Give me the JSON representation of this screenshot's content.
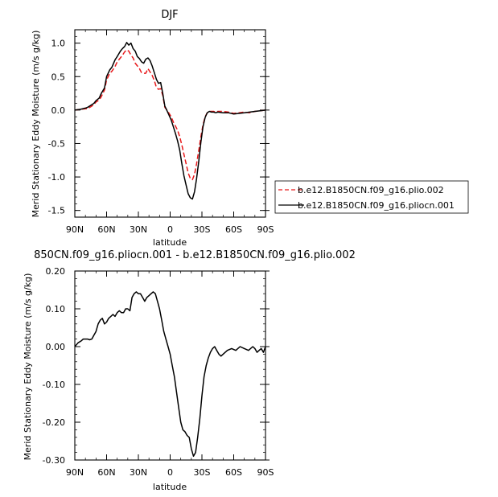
{
  "chart_data": [
    {
      "type": "line",
      "title": "DJF",
      "xlabel": "latitude",
      "ylabel": "Merid Stationary Eddy Moisture (m/s g/kg)",
      "xlim": [
        90,
        -90
      ],
      "ylim": [
        -1.6,
        1.2
      ],
      "xticks": [
        90,
        60,
        30,
        0,
        -30,
        -60,
        -90
      ],
      "xtick_labels": [
        "90N",
        "60N",
        "30N",
        "0",
        "30S",
        "60S",
        "90S"
      ],
      "yticks": [
        1.0,
        0.5,
        0.0,
        -0.5,
        -1.0,
        -1.5
      ],
      "ytick_labels": [
        "1.0",
        "0.5",
        "0.0",
        "-0.5",
        "-1.0",
        "-1.5"
      ],
      "legend_position": "right",
      "series": [
        {
          "name": "b.e12.B1850CN.f09_g16.plio.002",
          "color": "#e8191b",
          "style": "dashed",
          "x": [
            90,
            85,
            80,
            78,
            75,
            72,
            70,
            67,
            65,
            62,
            60,
            57,
            55,
            52,
            50,
            47,
            45,
            43,
            41,
            39,
            37,
            35,
            33,
            31,
            29,
            27,
            25,
            23,
            21,
            19,
            17,
            15,
            13,
            11,
            9,
            7,
            5,
            3,
            1,
            -1,
            -3,
            -5,
            -7,
            -9,
            -11,
            -13,
            -15,
            -17,
            -19,
            -21,
            -23,
            -25,
            -27,
            -29,
            -31,
            -33,
            -35,
            -37,
            -39,
            -41,
            -43,
            -45,
            -50,
            -55,
            -60,
            -65,
            -70,
            -75,
            -80,
            -85,
            -90
          ],
          "y": [
            0.0,
            0.01,
            0.02,
            0.02,
            0.05,
            0.08,
            0.12,
            0.15,
            0.2,
            0.3,
            0.45,
            0.55,
            0.58,
            0.65,
            0.72,
            0.78,
            0.82,
            0.87,
            0.9,
            0.88,
            0.82,
            0.78,
            0.7,
            0.66,
            0.62,
            0.56,
            0.55,
            0.55,
            0.62,
            0.57,
            0.52,
            0.44,
            0.34,
            0.31,
            0.32,
            0.22,
            0.04,
            0.0,
            -0.05,
            -0.1,
            -0.18,
            -0.24,
            -0.3,
            -0.4,
            -0.52,
            -0.66,
            -0.8,
            -0.94,
            -1.02,
            -1.04,
            -0.96,
            -0.8,
            -0.6,
            -0.4,
            -0.22,
            -0.1,
            -0.04,
            -0.02,
            -0.02,
            -0.02,
            -0.03,
            -0.02,
            -0.02,
            -0.03,
            -0.05,
            -0.04,
            -0.03,
            -0.04,
            -0.02,
            -0.01,
            0.0
          ]
        },
        {
          "name": "b.e12.B1850CN.f09_g16.pliocn.001",
          "color": "#000000",
          "style": "solid",
          "x": [
            90,
            85,
            80,
            78,
            75,
            72,
            70,
            67,
            65,
            62,
            60,
            57,
            55,
            52,
            50,
            47,
            45,
            43,
            41,
            39,
            37,
            35,
            33,
            31,
            29,
            27,
            25,
            23,
            21,
            19,
            17,
            15,
            13,
            11,
            9,
            7,
            5,
            3,
            1,
            -1,
            -3,
            -5,
            -7,
            -9,
            -11,
            -13,
            -15,
            -17,
            -19,
            -21,
            -23,
            -25,
            -27,
            -29,
            -31,
            -33,
            -35,
            -37,
            -39,
            -41,
            -43,
            -45,
            -50,
            -55,
            -60,
            -65,
            -70,
            -75,
            -80,
            -85,
            -90
          ],
          "y": [
            0.0,
            0.01,
            0.03,
            0.04,
            0.07,
            0.1,
            0.14,
            0.18,
            0.25,
            0.33,
            0.5,
            0.6,
            0.64,
            0.75,
            0.8,
            0.88,
            0.92,
            0.95,
            1.01,
            0.97,
            1.0,
            0.92,
            0.88,
            0.8,
            0.77,
            0.72,
            0.7,
            0.76,
            0.78,
            0.74,
            0.66,
            0.56,
            0.46,
            0.4,
            0.41,
            0.25,
            0.06,
            -0.01,
            -0.08,
            -0.15,
            -0.25,
            -0.35,
            -0.46,
            -0.6,
            -0.8,
            -0.98,
            -1.12,
            -1.25,
            -1.31,
            -1.33,
            -1.22,
            -1.02,
            -0.76,
            -0.48,
            -0.25,
            -0.11,
            -0.04,
            -0.02,
            -0.03,
            -0.03,
            -0.04,
            -0.03,
            -0.04,
            -0.04,
            -0.06,
            -0.05,
            -0.04,
            -0.03,
            -0.02,
            -0.01,
            0.0
          ]
        }
      ]
    },
    {
      "type": "line",
      "title": "850CN.f09_g16.pliocn.001 - b.e12.B1850CN.f09_g16.plio.002",
      "xlabel": "latitude",
      "ylabel": "Merid Stationary Eddy Moisture (m/s g/kg)",
      "xlim": [
        90,
        -90
      ],
      "ylim": [
        -0.3,
        0.2
      ],
      "xticks": [
        90,
        60,
        30,
        0,
        -30,
        -60,
        -90
      ],
      "xtick_labels": [
        "90N",
        "60N",
        "30N",
        "0",
        "30S",
        "60S",
        "90S"
      ],
      "yticks": [
        0.2,
        0.1,
        0.0,
        -0.1,
        -0.2,
        -0.3
      ],
      "ytick_labels": [
        "0.20",
        "0.10",
        "0.00",
        "-0.10",
        "-0.20",
        "-0.30"
      ],
      "series": [
        {
          "color": "#000000",
          "style": "solid",
          "x": [
            90,
            87,
            84,
            82,
            80,
            78,
            76,
            74,
            72,
            70,
            68,
            66,
            64,
            62,
            60,
            58,
            56,
            54,
            52,
            50,
            48,
            46,
            44,
            42,
            40,
            38,
            36,
            34,
            32,
            30,
            28,
            26,
            24,
            22,
            20,
            18,
            16,
            14,
            12,
            10,
            8,
            6,
            4,
            2,
            0,
            -2,
            -4,
            -6,
            -8,
            -10,
            -12,
            -14,
            -16,
            -18,
            -20,
            -22,
            -24,
            -26,
            -28,
            -30,
            -32,
            -34,
            -36,
            -38,
            -40,
            -42,
            -44,
            -46,
            -48,
            -50,
            -54,
            -58,
            -62,
            -66,
            -70,
            -74,
            -78,
            -80,
            -82,
            -84,
            -86,
            -88,
            -90
          ],
          "y": [
            0.0,
            0.01,
            0.015,
            0.02,
            0.02,
            0.02,
            0.018,
            0.02,
            0.03,
            0.04,
            0.06,
            0.07,
            0.075,
            0.06,
            0.065,
            0.075,
            0.08,
            0.085,
            0.08,
            0.09,
            0.095,
            0.09,
            0.09,
            0.1,
            0.1,
            0.095,
            0.13,
            0.14,
            0.145,
            0.14,
            0.14,
            0.13,
            0.12,
            0.13,
            0.135,
            0.14,
            0.145,
            0.14,
            0.12,
            0.1,
            0.07,
            0.04,
            0.02,
            0.0,
            -0.02,
            -0.05,
            -0.08,
            -0.12,
            -0.16,
            -0.2,
            -0.22,
            -0.225,
            -0.235,
            -0.24,
            -0.27,
            -0.29,
            -0.28,
            -0.24,
            -0.19,
            -0.13,
            -0.08,
            -0.05,
            -0.03,
            -0.015,
            -0.005,
            0.0,
            -0.01,
            -0.02,
            -0.025,
            -0.02,
            -0.01,
            -0.005,
            -0.01,
            0.0,
            -0.005,
            -0.01,
            0.0,
            -0.005,
            -0.015,
            -0.01,
            -0.005,
            -0.015,
            0.0
          ]
        }
      ]
    }
  ]
}
